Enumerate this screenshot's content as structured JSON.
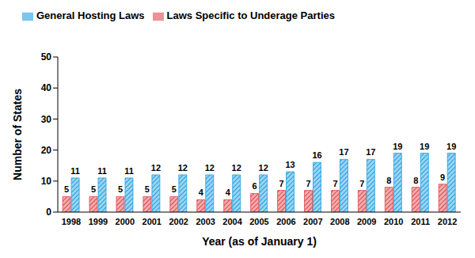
{
  "chart_data": {
    "type": "bar",
    "categories": [
      "1998",
      "1999",
      "2000",
      "2001",
      "2002",
      "2003",
      "2004",
      "2005",
      "2006",
      "2007",
      "2008",
      "2009",
      "2010",
      "2011",
      "2012"
    ],
    "series": [
      {
        "name": "Laws Specific to Underage Parties",
        "color": "#e0474c",
        "values": [
          5,
          5,
          5,
          5,
          5,
          4,
          4,
          6,
          7,
          7,
          7,
          7,
          8,
          8,
          9
        ]
      },
      {
        "name": "General Hosting Laws",
        "color": "#1f9fe0",
        "values": [
          11,
          11,
          11,
          12,
          12,
          12,
          12,
          12,
          13,
          16,
          17,
          17,
          19,
          19,
          19
        ]
      }
    ],
    "x_label": "Year (as of January 1)",
    "y_label": "Number of States",
    "ylim": [
      0,
      50
    ],
    "yticks": [
      0,
      10,
      20,
      30,
      40,
      50
    ],
    "grid": false,
    "legend": "top-left",
    "data_labels": true
  }
}
